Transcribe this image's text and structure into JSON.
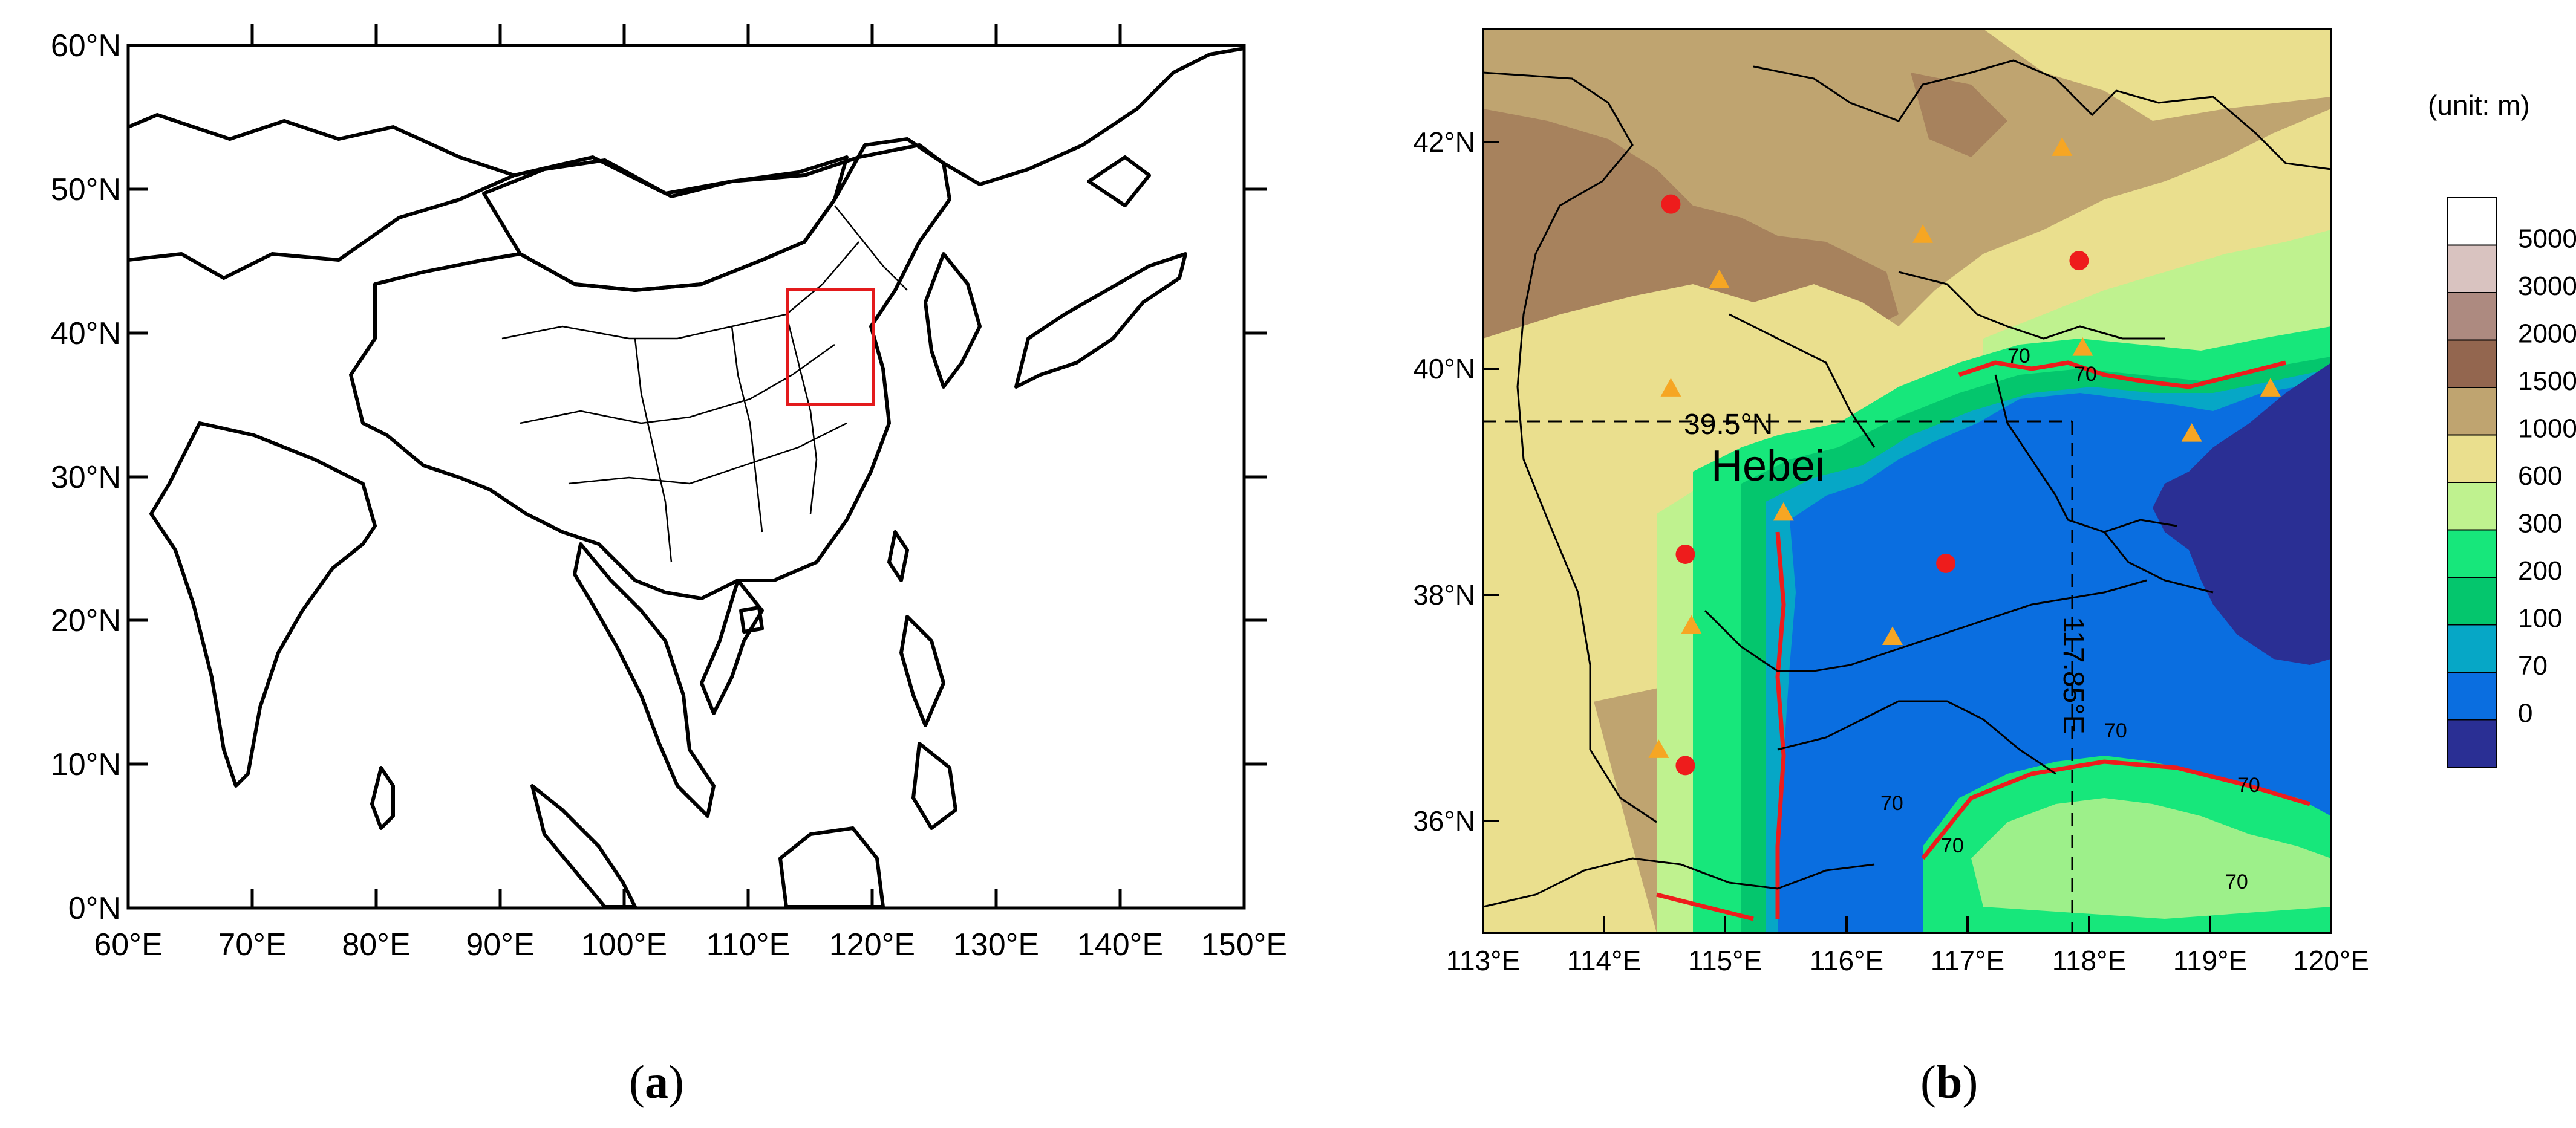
{
  "panel_a": {
    "lat_labels": [
      "60°N",
      "50°N",
      "40°N",
      "30°N",
      "20°N",
      "10°N",
      "0°N"
    ],
    "lon_labels": [
      "60°E",
      "70°E",
      "80°E",
      "90°E",
      "100°E",
      "110°E",
      "120°E",
      "130°E",
      "140°E",
      "150°E"
    ],
    "caption_letter": "a",
    "highlight_box_color": "#e31a1c"
  },
  "panel_b": {
    "lat_labels": [
      "42°N",
      "40°N",
      "38°N",
      "36°N"
    ],
    "lon_labels": [
      "113°E",
      "114°E",
      "115°E",
      "116°E",
      "117°E",
      "118°E",
      "119°E",
      "120°E"
    ],
    "region_label": "Hebei",
    "lat_line_label": "39.5°N",
    "lon_line_label": "117.85°E",
    "contour_label": "70",
    "caption_letter": "b",
    "legend": {
      "unit": "(unit: m)",
      "levels": [
        {
          "label": "5000",
          "color": "#ffffff"
        },
        {
          "label": "3000",
          "color": "#d9c3c0"
        },
        {
          "label": "2000",
          "color": "#ad8a80"
        },
        {
          "label": "1500",
          "color": "#93664f"
        },
        {
          "label": "1000",
          "color": "#bfa470"
        },
        {
          "label": "600",
          "color": "#eadf8e"
        },
        {
          "label": "300",
          "color": "#bff28f"
        },
        {
          "label": "200",
          "color": "#17e77b"
        },
        {
          "label": "100",
          "color": "#04c66d"
        },
        {
          "label": "70",
          "color": "#06a7c6"
        },
        {
          "label": "0",
          "color": "#0a6ee0"
        },
        {
          "label": "",
          "color": "#2a2f94"
        }
      ]
    },
    "stations": {
      "red_circles": [
        [
          114.55,
          41.45
        ],
        [
          117.92,
          40.95
        ],
        [
          114.67,
          38.35
        ],
        [
          116.82,
          38.27
        ],
        [
          114.67,
          36.48
        ]
      ],
      "orange_triangles": [
        [
          117.78,
          41.95
        ],
        [
          116.63,
          41.18
        ],
        [
          114.95,
          40.78
        ],
        [
          117.95,
          40.18
        ],
        [
          114.55,
          39.82
        ],
        [
          119.5,
          39.82
        ],
        [
          118.85,
          39.42
        ],
        [
          115.48,
          38.72
        ],
        [
          114.72,
          37.72
        ],
        [
          116.38,
          37.62
        ],
        [
          114.45,
          36.62
        ]
      ],
      "red_color": "#ee1c1c",
      "orange_color": "#f6a623"
    }
  }
}
